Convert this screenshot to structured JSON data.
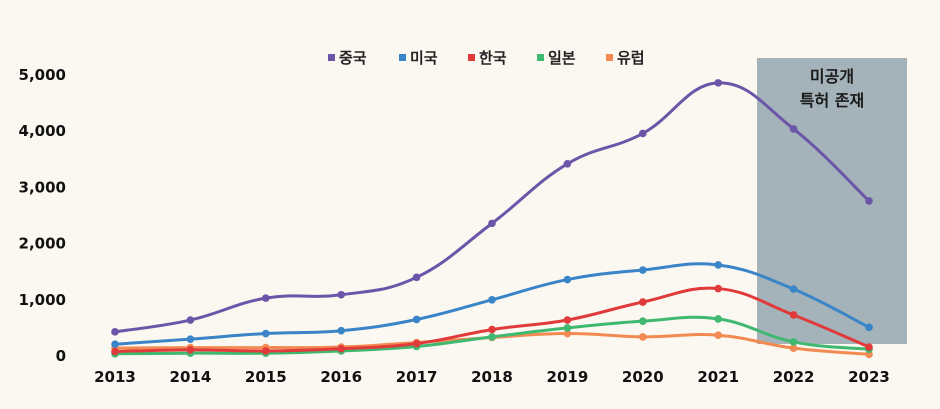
{
  "chart_data": {
    "type": "line",
    "title": "",
    "xlabel": "",
    "ylabel": "",
    "categories": [
      "2013",
      "2014",
      "2015",
      "2016",
      "2017",
      "2018",
      "2019",
      "2020",
      "2021",
      "2022",
      "2023"
    ],
    "ylim": [
      0,
      5000
    ],
    "yticks": [
      {
        "value": 0,
        "label": "0"
      },
      {
        "value": 1000,
        "label": "1,000"
      },
      {
        "value": 2000,
        "label": "2,000"
      },
      {
        "value": 3000,
        "label": "3,000"
      },
      {
        "value": 4000,
        "label": "4,000"
      },
      {
        "value": 5000,
        "label": "5,000"
      }
    ],
    "grid": false,
    "legend_position": "top-center",
    "series": [
      {
        "name": "중국",
        "color": "#6b55a8",
        "values": [
          430,
          640,
          1030,
          1090,
          1400,
          2360,
          3420,
          3960,
          4860,
          4040,
          2760
        ]
      },
      {
        "name": "미국",
        "color": "#3a84c8",
        "values": [
          210,
          300,
          400,
          450,
          650,
          1000,
          1360,
          1530,
          1620,
          1190,
          510
        ]
      },
      {
        "name": "한국",
        "color": "#e03a3a",
        "values": [
          80,
          110,
          90,
          130,
          220,
          470,
          640,
          960,
          1200,
          730,
          160
        ]
      },
      {
        "name": "일본",
        "color": "#3fb870",
        "values": [
          40,
          50,
          50,
          90,
          170,
          340,
          500,
          620,
          660,
          250,
          120
        ]
      },
      {
        "name": "유럽",
        "color": "#f28a52",
        "values": [
          140,
          150,
          150,
          160,
          240,
          330,
          400,
          340,
          370,
          140,
          30
        ]
      }
    ],
    "annotation": {
      "lines": [
        "미공개",
        "특허 존재"
      ],
      "from_category": "2022",
      "to_category": "2023",
      "color": "#9aabb3"
    }
  }
}
